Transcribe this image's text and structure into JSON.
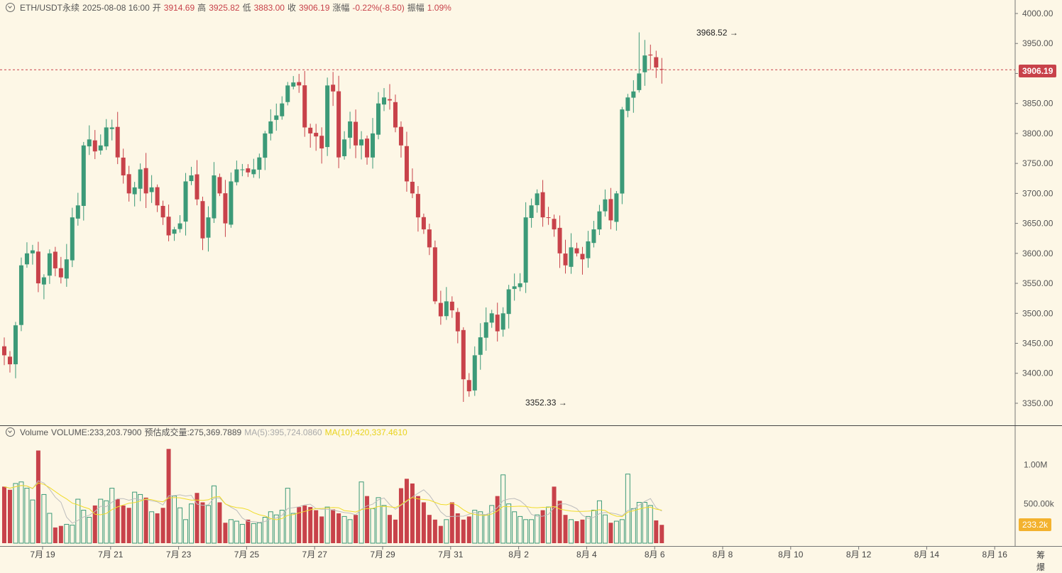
{
  "header": {
    "symbol": "ETH/USDT永续",
    "datetime": "2025-08-08 16:00",
    "open_label": "开",
    "open": "3914.69",
    "high_label": "高",
    "high": "3925.82",
    "low_label": "低",
    "low": "3883.00",
    "close_label": "收",
    "close": "3906.19",
    "change_label": "涨幅",
    "change": "-0.22%(-8.50)",
    "amplitude_label": "振幅",
    "amplitude": "1.09%"
  },
  "volume_header": {
    "title": "Volume",
    "volume": "VOLUME:233,203.7900",
    "estimated": "预估成交量:275,369.7889",
    "ma5": "MA(5):395,724.0860",
    "ma10": "MA(10):420,337.4610"
  },
  "annotations": {
    "high_label": "3968.52",
    "low_label": "3352.33"
  },
  "price_tag": "3906.19",
  "volume_tag": "233.2k",
  "bottom_right": "筹 爆",
  "colors": {
    "background": "#fdf7e6",
    "up": "#3c9a78",
    "down": "#c8424a",
    "ma5": "#bdbdbd",
    "ma10": "#f0dc2a"
  },
  "chart_data": {
    "type": "candlestick",
    "interval": "4H",
    "price_axis": {
      "ticks": [
        3350,
        3400,
        3450,
        3500,
        3550,
        3600,
        3650,
        3700,
        3750,
        3800,
        3850,
        3900,
        3950,
        4000
      ],
      "labels": [
        "3350.00",
        "3400.00",
        "3450.00",
        "3500.00",
        "3550.00",
        "3600.00",
        "3650.00",
        "3700.00",
        "3750.00",
        "3800.00",
        "3850.00",
        "3900.00",
        "3950.00",
        "4000.00"
      ]
    },
    "volume_axis": {
      "ticks": [
        500000,
        1000000
      ],
      "labels": [
        "500.00k",
        "1.00M"
      ]
    },
    "x_axis_labels": [
      "7月 19",
      "7月 21",
      "7月 23",
      "7月 25",
      "7月 27",
      "7月 29",
      "7月 31",
      "8月 2",
      "8月 4",
      "8月 6",
      "8月 8",
      "8月 10",
      "8月 12",
      "8月 14",
      "8月 16"
    ],
    "key_points": {
      "high": 3968.52,
      "low": 3352.33,
      "last_close": 3906.19,
      "last_volume": 233203.79
    },
    "close_path": [
      3430,
      3415,
      3480,
      3580,
      3600,
      3605,
      3550,
      3560,
      3600,
      3575,
      3560,
      3590,
      3660,
      3680,
      3780,
      3790,
      3770,
      3780,
      3810,
      3810,
      3760,
      3730,
      3700,
      3710,
      3740,
      3700,
      3710,
      3680,
      3660,
      3630,
      3640,
      3650,
      3720,
      3730,
      3690,
      3625,
      3660,
      3730,
      3700,
      3650,
      3720,
      3740,
      3740,
      3735,
      3740,
      3760,
      3800,
      3820,
      3830,
      3850,
      3880,
      3885,
      3880,
      3810,
      3800,
      3795,
      3775,
      3880,
      3870,
      3760,
      3790,
      3820,
      3780,
      3790,
      3760,
      3800,
      3850,
      3860,
      3855,
      3810,
      3780,
      3720,
      3700,
      3660,
      3640,
      3610,
      3520,
      3495,
      3520,
      3505,
      3470,
      3390,
      3370,
      3430,
      3460,
      3485,
      3500,
      3470,
      3500,
      3540,
      3545,
      3550,
      3660,
      3680,
      3700,
      3660,
      3660,
      3640,
      3600,
      3580,
      3610,
      3600,
      3590,
      3620,
      3640,
      3670,
      3690,
      3655,
      3700,
      3840,
      3860,
      3870,
      3900,
      3930,
      3930,
      3910,
      3906.19
    ],
    "volumes_k": [
      720,
      680,
      760,
      780,
      700,
      550,
      1180,
      620,
      380,
      200,
      220,
      240,
      230,
      560,
      420,
      330,
      480,
      560,
      540,
      700,
      560,
      480,
      450,
      650,
      620,
      580,
      400,
      380,
      450,
      1200,
      600,
      450,
      300,
      500,
      640,
      520,
      480,
      730,
      520,
      260,
      300,
      280,
      240,
      300,
      250,
      260,
      330,
      400,
      360,
      420,
      700,
      380,
      460,
      480,
      460,
      420,
      340,
      460,
      430,
      380,
      340,
      300,
      360,
      780,
      600,
      440,
      580,
      480,
      360,
      300,
      700,
      820,
      760,
      600,
      520,
      360,
      300,
      220,
      300,
      520,
      380,
      300,
      340,
      420,
      400,
      360,
      480,
      600,
      870,
      500,
      400,
      340,
      300,
      300,
      360,
      420,
      460,
      720,
      540,
      360,
      300,
      280,
      300,
      340,
      420,
      540,
      360,
      260,
      280,
      300,
      880,
      440,
      520,
      520,
      480,
      290,
      233
    ]
  }
}
